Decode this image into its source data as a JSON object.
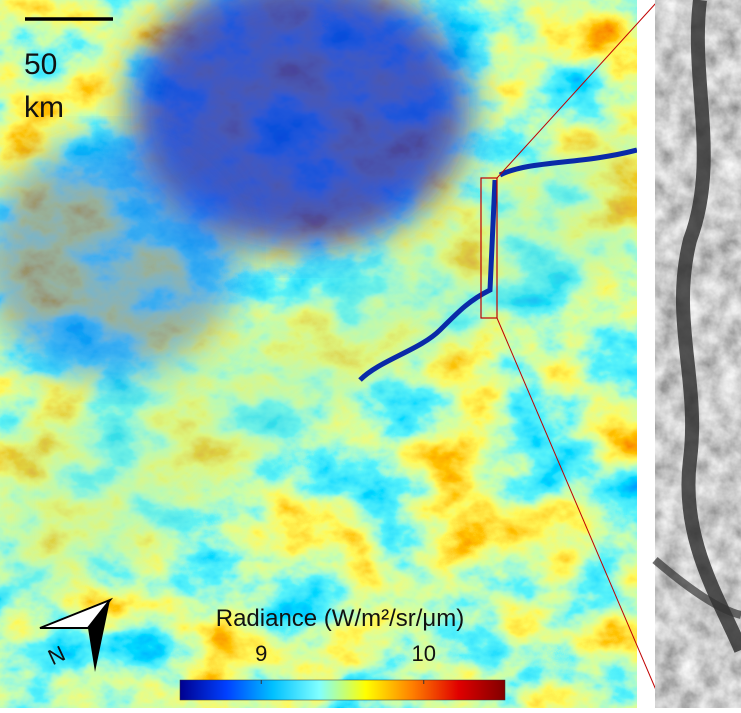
{
  "map": {
    "scale_bar": {
      "value": "50",
      "unit": "km"
    },
    "north_label": "N",
    "colorbar": {
      "label": "Radiance (W/m²/sr/μm)",
      "lim": [
        8.5,
        10.5
      ],
      "ticks": [
        9,
        10
      ],
      "colors": [
        "#00008f",
        "#0040ff",
        "#00c0ff",
        "#80ffff",
        "#ffff00",
        "#ff8000",
        "#e00000",
        "#800000"
      ]
    }
  }
}
